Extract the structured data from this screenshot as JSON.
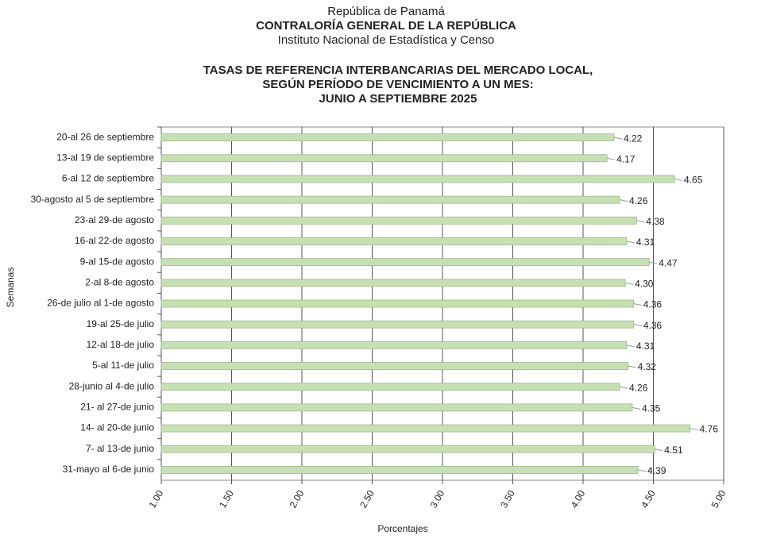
{
  "header": {
    "lines": [
      "República de Panamá",
      "CONTRALORÍA GENERAL DE LA REPÚBLICA",
      "Instituto  Nacional de Estadística y Censo"
    ]
  },
  "chart_data": {
    "type": "bar",
    "orientation": "horizontal",
    "title": [
      "TASAS DE REFERENCIA INTERBANCARIAS DEL MERCADO LOCAL,",
      "SEGÚN PERÍODO DE VENCIMIENTO A UN MES:",
      "JUNIO A  SEPTIEMBRE 2025"
    ],
    "categories": [
      "20-al 26 de septiembre",
      "13-al 19 de septiembre",
      "6-al 12 de septiembre",
      "30-agosto al 5 de septiembre",
      "23-al 29-de agosto",
      "16-al 22-de agosto",
      "9-al 15-de agosto",
      "2-al 8-de agosto",
      "26-de julio al 1-de agosto",
      "19-al 25-de julio",
      "12-al 18-de julio",
      "5-al 11-de julio",
      "28-junio al 4-de julio",
      "21- al 27-de junio",
      "14- al 20-de junio",
      "7- al 13-de junio",
      "31-mayo al 6-de junio"
    ],
    "values": [
      4.22,
      4.17,
      4.65,
      4.26,
      4.38,
      4.31,
      4.47,
      4.3,
      4.36,
      4.36,
      4.31,
      4.32,
      4.26,
      4.35,
      4.76,
      4.51,
      4.39
    ],
    "value_labels": [
      "4.22",
      "4.17",
      "4.65",
      "4.26",
      "4.38",
      "4.31",
      "4.47",
      "4.30",
      "4.36",
      "4.36",
      "4.31",
      "4.32",
      "4.26",
      "4.35",
      "4.76",
      "4.51",
      "4.39"
    ],
    "color": "#c6e0b4",
    "xlim": [
      1,
      5
    ],
    "xticks": [
      {
        "value": 1,
        "label": "1.00"
      },
      {
        "value": 1.5,
        "label": "1.50"
      },
      {
        "value": 2,
        "label": "2.00"
      },
      {
        "value": 2.5,
        "label": "2.50"
      },
      {
        "value": 3,
        "label": "3.00"
      },
      {
        "value": 3.5,
        "label": "3.50"
      },
      {
        "value": 4,
        "label": "4.00"
      },
      {
        "value": 4.5,
        "label": "4.50"
      },
      {
        "value": 5,
        "label": "5.00"
      }
    ],
    "xlabel": "Porcentajes",
    "ylabel": "Semanas",
    "grid": true
  }
}
